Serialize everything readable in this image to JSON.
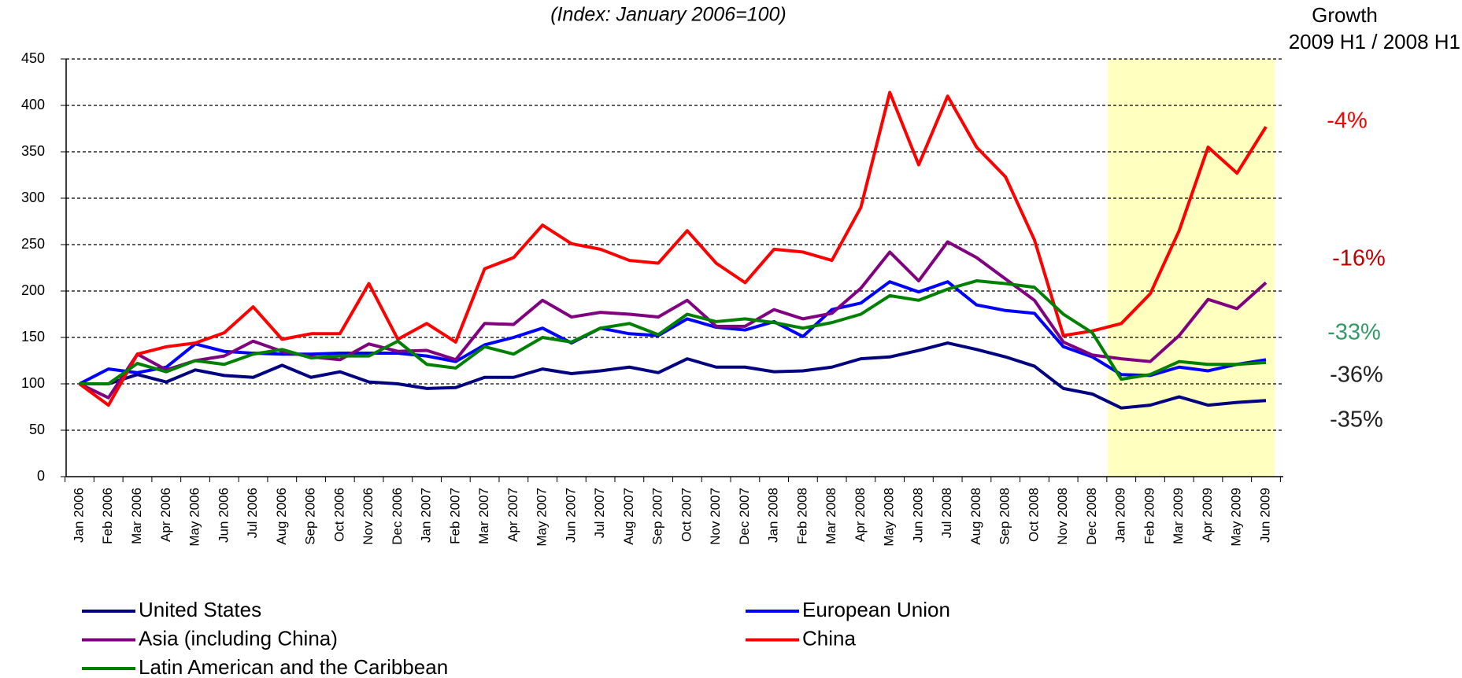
{
  "chart_data": {
    "type": "line",
    "title": "(Index: January 2006=100)",
    "growth_header": [
      "Growth",
      "2009 H1 / 2008 H1"
    ],
    "categories": [
      "Jan 2006",
      "Feb 2006",
      "Mar 2006",
      "Apr 2006",
      "May 2006",
      "Jun 2006",
      "Jul 2006",
      "Aug 2006",
      "Sep 2006",
      "Oct 2006",
      "Nov 2006",
      "Dec 2006",
      "Jan 2007",
      "Feb 2007",
      "Mar 2007",
      "Apr 2007",
      "May 2007",
      "Jun 2007",
      "Jul 2007",
      "Aug 2007",
      "Sep 2007",
      "Oct 2007",
      "Nov 2007",
      "Dec 2007",
      "Jan 2008",
      "Feb 2008",
      "Mar 2008",
      "Apr 2008",
      "May 2008",
      "Jun 2008",
      "Jul 2008",
      "Aug 2008",
      "Sep 2008",
      "Oct 2008",
      "Nov 2008",
      "Dec 2008",
      "Jan 2009",
      "Feb 2009",
      "Mar 2009",
      "Apr 2009",
      "May 2009",
      "Jun 2009"
    ],
    "series": [
      {
        "name": "United States",
        "color": "#000080",
        "values": [
          100,
          100,
          110,
          102,
          115,
          109,
          107,
          120,
          107,
          113,
          102,
          100,
          95,
          96,
          107,
          107,
          116,
          111,
          114,
          118,
          112,
          127,
          118,
          118,
          113,
          114,
          118,
          127,
          129,
          136,
          144,
          137,
          129,
          119,
          95,
          89,
          74,
          77,
          86,
          77,
          80,
          82
        ]
      },
      {
        "name": "European Union",
        "color": "#0000ff",
        "values": [
          100,
          116,
          112,
          118,
          143,
          135,
          133,
          132,
          132,
          133,
          133,
          133,
          130,
          124,
          142,
          150,
          160,
          144,
          160,
          154,
          152,
          170,
          161,
          158,
          167,
          151,
          180,
          187,
          210,
          199,
          210,
          185,
          179,
          176,
          140,
          129,
          110,
          109,
          118,
          114,
          121,
          126
        ]
      },
      {
        "name": "Asia (including China)",
        "color": "#800080",
        "values": [
          100,
          85,
          132,
          115,
          125,
          130,
          146,
          135,
          129,
          126,
          143,
          135,
          136,
          126,
          165,
          164,
          190,
          172,
          177,
          175,
          172,
          190,
          162,
          162,
          180,
          170,
          176,
          203,
          242,
          211,
          253,
          236,
          213,
          190,
          145,
          131,
          127,
          124,
          152,
          191,
          181,
          209
        ]
      },
      {
        "name": "China",
        "color": "#ff0000",
        "values": [
          100,
          77,
          132,
          140,
          144,
          155,
          183,
          148,
          154,
          154,
          208,
          148,
          165,
          145,
          224,
          236,
          271,
          251,
          245,
          233,
          230,
          265,
          230,
          209,
          245,
          242,
          233,
          290,
          414,
          336,
          410,
          355,
          323,
          255,
          152,
          157,
          165,
          197,
          265,
          355,
          327,
          377
        ]
      },
      {
        "name": "Latin American and the Caribbean",
        "color": "#008000",
        "values": [
          100,
          100,
          122,
          113,
          125,
          121,
          132,
          137,
          128,
          130,
          130,
          146,
          121,
          117,
          140,
          132,
          150,
          145,
          160,
          165,
          153,
          175,
          167,
          170,
          166,
          160,
          166,
          175,
          195,
          190,
          202,
          211,
          208,
          204,
          175,
          155,
          105,
          110,
          124,
          121,
          121,
          123
        ]
      }
    ],
    "annotations": [
      {
        "text": "-4%",
        "color": "#ff0000"
      },
      {
        "text": "-16%",
        "color": "#c00000"
      },
      {
        "text": "-33%",
        "color": "#339966"
      },
      {
        "text": "-36%",
        "color": "#222222"
      },
      {
        "text": "-35%",
        "color": "#222222"
      }
    ],
    "ylim": [
      0,
      450
    ],
    "yticks": [
      0,
      50,
      100,
      150,
      200,
      250,
      300,
      350,
      400,
      450
    ],
    "grid": true
  }
}
